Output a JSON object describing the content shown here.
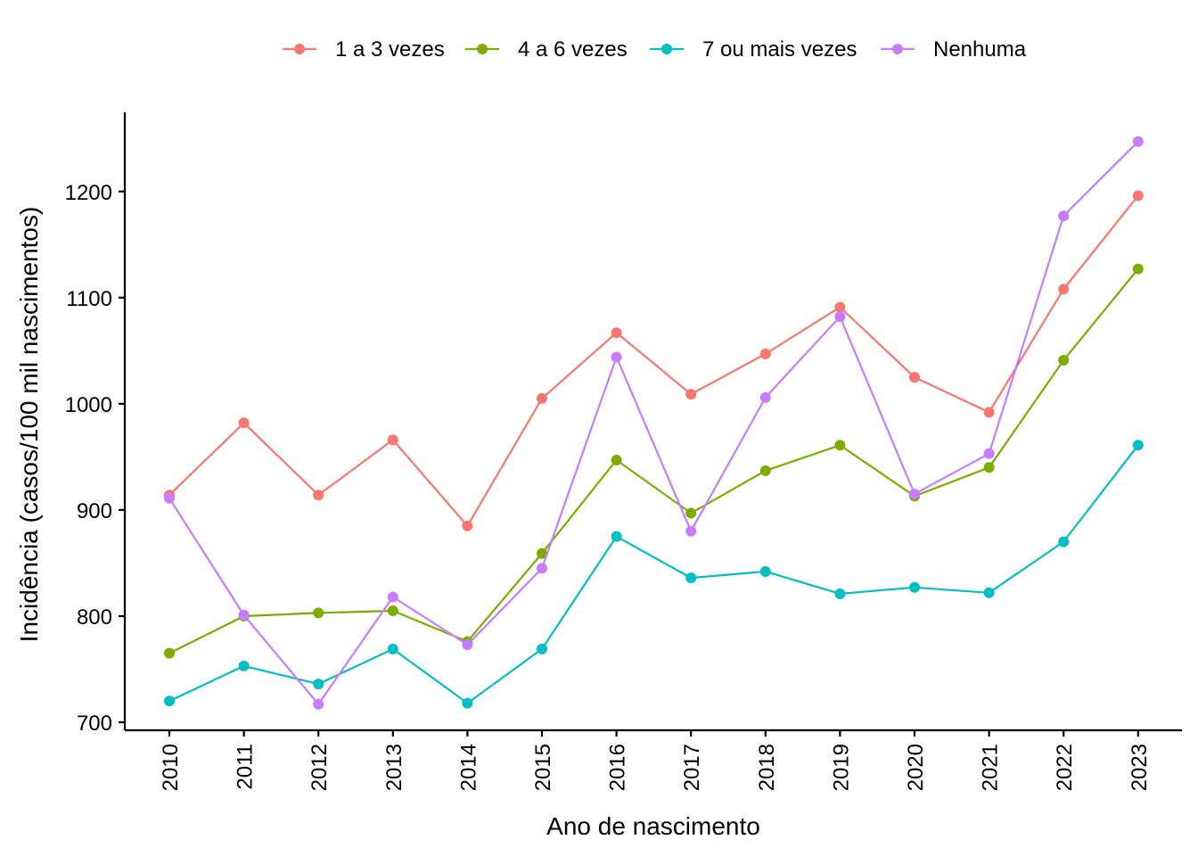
{
  "chart_data": {
    "type": "line",
    "title": "",
    "xlabel": "Ano de nascimento",
    "ylabel": "Incidência (casos/100 mil nascimentos)",
    "x": [
      "2010",
      "2011",
      "2012",
      "2013",
      "2014",
      "2015",
      "2016",
      "2017",
      "2018",
      "2019",
      "2020",
      "2021",
      "2022",
      "2023"
    ],
    "y_ticks": [
      700,
      800,
      900,
      1000,
      1100,
      1200
    ],
    "ylim": [
      695,
      1265
    ],
    "grid": false,
    "legend_position": "top",
    "series": [
      {
        "name": "1 a 3 vezes",
        "color": "#F8766D",
        "values": [
          914,
          982,
          914,
          966,
          885,
          1005,
          1067,
          1009,
          1047,
          1091,
          1025,
          992,
          1108,
          1196
        ]
      },
      {
        "name": "4 a 6 vezes",
        "color": "#7CAE00",
        "values": [
          765,
          800,
          803,
          805,
          776,
          859,
          947,
          897,
          937,
          961,
          913,
          940,
          1041,
          1127
        ]
      },
      {
        "name": "7 ou mais vezes",
        "color": "#00BFC4",
        "values": [
          720,
          753,
          736,
          769,
          718,
          769,
          875,
          836,
          842,
          821,
          827,
          822,
          870,
          961
        ]
      },
      {
        "name": "Nenhuma",
        "color": "#C77CFF",
        "values": [
          911,
          801,
          717,
          818,
          773,
          845,
          1044,
          880,
          1006,
          1082,
          915,
          953,
          1177,
          1247
        ]
      }
    ]
  }
}
